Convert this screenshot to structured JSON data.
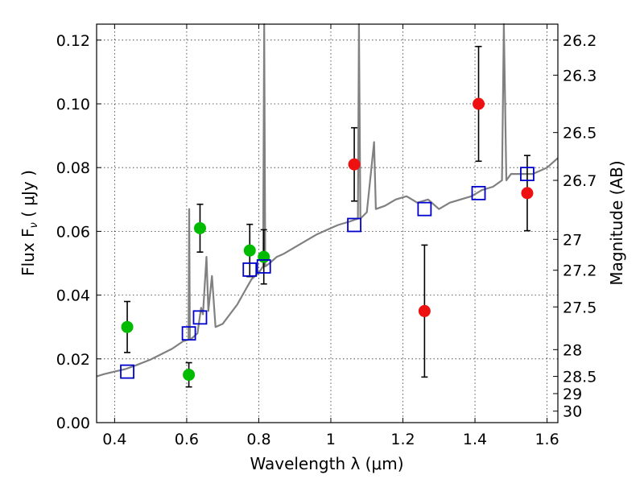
{
  "chart_data": {
    "type": "scatter",
    "xlabel": "Wavelength  λ (μm)",
    "ylabel": "Flux  F",
    "ylabel_sub": "ν",
    "ylabel_unit": "  ( μJy )",
    "y2label": "Magnitude (AB)",
    "xlim": [
      0.35,
      1.63
    ],
    "ylim": [
      0.0,
      0.125
    ],
    "grid": true,
    "x_ticks": [
      0.4,
      0.6,
      0.8,
      1.0,
      1.2,
      1.4,
      1.6
    ],
    "x_tick_labels": [
      "0.4",
      "0.6",
      "0.8",
      "1",
      "1.2",
      "1.4",
      "1.6"
    ],
    "y_ticks": [
      0.0,
      0.02,
      0.04,
      0.06,
      0.08,
      0.1,
      0.12
    ],
    "y_tick_labels": [
      "0.00",
      "0.02",
      "0.04",
      "0.06",
      "0.08",
      "0.10",
      "0.12"
    ],
    "mag_ticks": [
      {
        "label": "26.2",
        "flux": 0.12
      },
      {
        "label": "26.3",
        "flux": 0.109
      },
      {
        "label": "26.5",
        "flux": 0.091
      },
      {
        "label": "26.7",
        "flux": 0.076
      },
      {
        "label": "27",
        "flux": 0.0575
      },
      {
        "label": "27.2",
        "flux": 0.0478
      },
      {
        "label": "27.5",
        "flux": 0.0363
      },
      {
        "label": "28",
        "flux": 0.0229
      },
      {
        "label": "28.5",
        "flux": 0.0145
      },
      {
        "label": "29",
        "flux": 0.0091
      },
      {
        "label": "30",
        "flux": 0.0036
      }
    ],
    "series": [
      {
        "color": "#00bb00",
        "marker": "circle",
        "points": [
          {
            "x": 0.435,
            "y": 0.03,
            "err": 0.008
          },
          {
            "x": 0.606,
            "y": 0.015,
            "err": 0.0038
          },
          {
            "x": 0.637,
            "y": 0.061,
            "err": 0.0075
          },
          {
            "x": 0.775,
            "y": 0.054,
            "err": 0.0082
          },
          {
            "x": 0.814,
            "y": 0.052,
            "err": 0.0085
          }
        ]
      },
      {
        "color": "#ee1111",
        "marker": "circle",
        "points": [
          {
            "x": 1.065,
            "y": 0.081,
            "err": 0.0115
          },
          {
            "x": 1.26,
            "y": 0.035,
            "err": 0.0207
          },
          {
            "x": 1.41,
            "y": 0.1,
            "err": 0.018
          },
          {
            "x": 1.545,
            "y": 0.072,
            "err": 0.0118
          }
        ]
      },
      {
        "color": "#0000cc",
        "marker": "open-square",
        "points": [
          {
            "x": 0.435,
            "y": 0.016
          },
          {
            "x": 0.606,
            "y": 0.028
          },
          {
            "x": 0.637,
            "y": 0.033
          },
          {
            "x": 0.775,
            "y": 0.048
          },
          {
            "x": 0.814,
            "y": 0.049
          },
          {
            "x": 1.065,
            "y": 0.062
          },
          {
            "x": 1.26,
            "y": 0.067
          },
          {
            "x": 1.41,
            "y": 0.072
          },
          {
            "x": 1.545,
            "y": 0.078
          }
        ]
      }
    ],
    "model_spectrum": {
      "color": "#808080",
      "points": [
        [
          0.35,
          0.0145
        ],
        [
          0.37,
          0.0152
        ],
        [
          0.4,
          0.016
        ],
        [
          0.43,
          0.0168
        ],
        [
          0.46,
          0.018
        ],
        [
          0.5,
          0.0198
        ],
        [
          0.53,
          0.0215
        ],
        [
          0.56,
          0.0232
        ],
        [
          0.59,
          0.0255
        ],
        [
          0.605,
          0.026
        ],
        [
          0.607,
          0.067
        ],
        [
          0.609,
          0.026
        ],
        [
          0.62,
          0.027
        ],
        [
          0.63,
          0.028
        ],
        [
          0.64,
          0.036
        ],
        [
          0.645,
          0.034
        ],
        [
          0.655,
          0.052
        ],
        [
          0.66,
          0.035
        ],
        [
          0.67,
          0.046
        ],
        [
          0.68,
          0.03
        ],
        [
          0.7,
          0.031
        ],
        [
          0.72,
          0.034
        ],
        [
          0.74,
          0.037
        ],
        [
          0.76,
          0.041
        ],
        [
          0.78,
          0.045
        ],
        [
          0.8,
          0.047
        ],
        [
          0.812,
          0.049
        ],
        [
          0.815,
          0.125
        ],
        [
          0.818,
          0.049
        ],
        [
          0.83,
          0.05
        ],
        [
          0.85,
          0.052
        ],
        [
          0.87,
          0.053
        ],
        [
          0.9,
          0.055
        ],
        [
          0.93,
          0.057
        ],
        [
          0.96,
          0.059
        ],
        [
          0.99,
          0.0605
        ],
        [
          1.02,
          0.062
        ],
        [
          1.05,
          0.063
        ],
        [
          1.075,
          0.064
        ],
        [
          1.078,
          0.125
        ],
        [
          1.082,
          0.064
        ],
        [
          1.1,
          0.066
        ],
        [
          1.12,
          0.088
        ],
        [
          1.125,
          0.067
        ],
        [
          1.15,
          0.068
        ],
        [
          1.18,
          0.07
        ],
        [
          1.21,
          0.071
        ],
        [
          1.24,
          0.069
        ],
        [
          1.27,
          0.07
        ],
        [
          1.3,
          0.067
        ],
        [
          1.33,
          0.069
        ],
        [
          1.36,
          0.07
        ],
        [
          1.39,
          0.071
        ],
        [
          1.42,
          0.073
        ],
        [
          1.45,
          0.074
        ],
        [
          1.475,
          0.076
        ],
        [
          1.48,
          0.125
        ],
        [
          1.487,
          0.076
        ],
        [
          1.5,
          0.078
        ],
        [
          1.53,
          0.078
        ],
        [
          1.56,
          0.078
        ],
        [
          1.6,
          0.08
        ],
        [
          1.63,
          0.083
        ]
      ]
    }
  }
}
